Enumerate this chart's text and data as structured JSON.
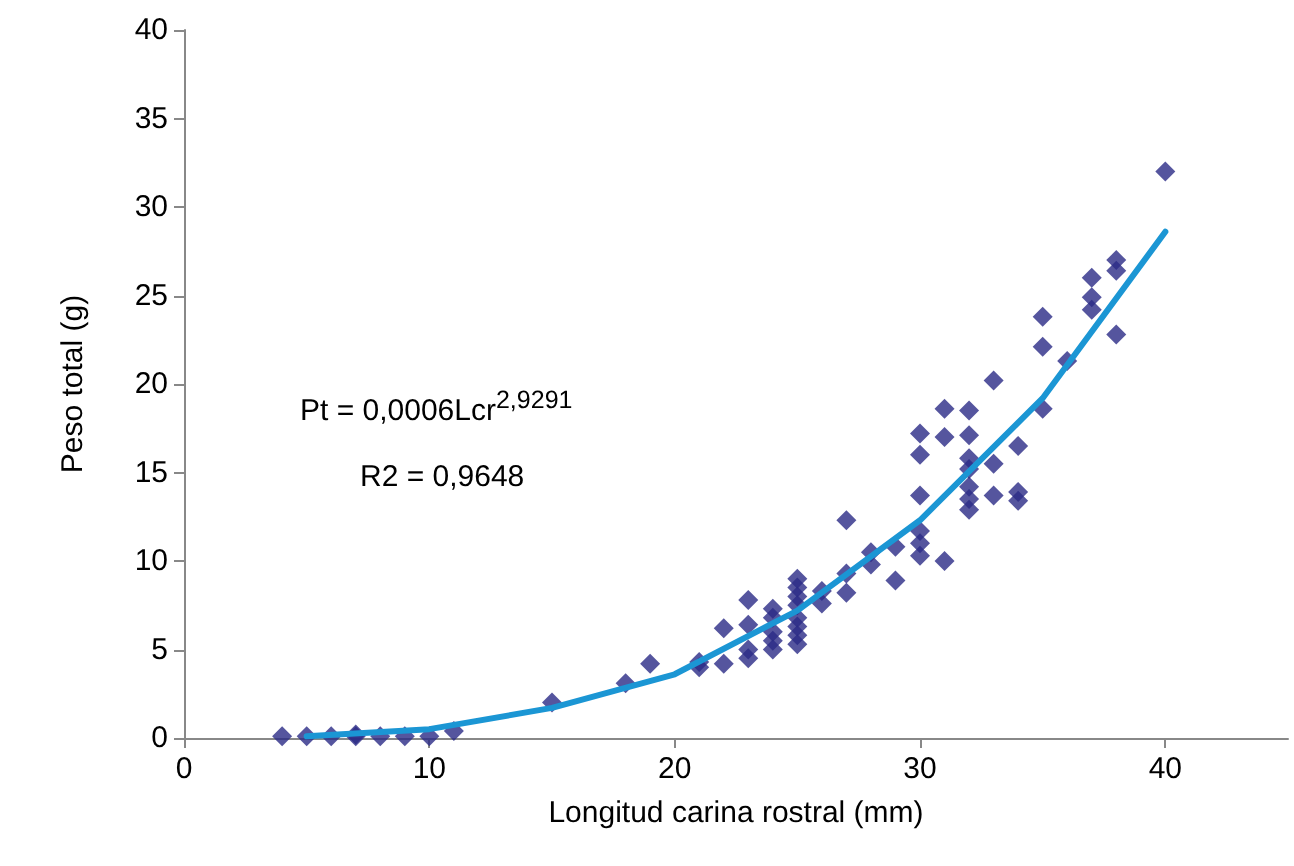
{
  "chart_data": {
    "type": "scatter",
    "xlabel": "Longitud carina rostral (mm)",
    "ylabel": "Peso total (g)",
    "xlim": [
      0,
      45
    ],
    "xticks": [
      0,
      10,
      20,
      30,
      40
    ],
    "ylim": [
      0,
      40
    ],
    "yticks": [
      0,
      5,
      10,
      15,
      20,
      25,
      30,
      35,
      40
    ],
    "grid": false,
    "annotations": [
      "Pt = 0,0006Lcr$^{2,9291}$",
      "R2 = 0,9648"
    ],
    "series": [
      {
        "marker": "diamond",
        "color": "#2b2b86",
        "x": [
          4,
          5,
          6,
          7,
          7,
          8,
          9,
          10,
          11,
          15,
          18,
          19,
          21,
          21,
          22,
          22,
          23,
          23,
          23,
          23,
          24,
          24,
          24,
          24,
          24,
          25,
          25,
          25,
          25,
          25,
          25,
          25,
          25,
          26,
          26,
          27,
          27,
          27,
          28,
          28,
          29,
          29,
          30,
          30,
          30,
          30,
          30,
          30,
          31,
          31,
          31,
          32,
          32,
          32,
          32,
          32,
          32,
          32,
          33,
          33,
          33,
          34,
          34,
          34,
          35,
          35,
          35,
          36,
          37,
          37,
          37,
          38,
          38,
          38,
          40
        ],
        "values": [
          0.1,
          0.1,
          0.1,
          0.2,
          0.1,
          0.1,
          0.1,
          0.1,
          0.4,
          2.0,
          3.1,
          4.2,
          4.0,
          4.3,
          6.2,
          4.2,
          7.8,
          6.4,
          5.0,
          4.5,
          7.3,
          6.8,
          6.0,
          5.5,
          5.0,
          9.0,
          8.5,
          8.0,
          7.5,
          6.8,
          6.3,
          5.8,
          5.3,
          8.3,
          7.6,
          12.3,
          9.3,
          8.2,
          10.5,
          9.8,
          10.8,
          8.9,
          17.2,
          16.0,
          13.7,
          11.7,
          11.0,
          10.3,
          18.6,
          17.0,
          10.0,
          18.5,
          17.1,
          15.8,
          15.2,
          14.2,
          13.5,
          12.9,
          20.2,
          15.5,
          13.7,
          16.5,
          13.9,
          13.4,
          23.8,
          22.1,
          18.6,
          21.3,
          26.0,
          24.9,
          24.2,
          27.0,
          26.4,
          22.8,
          32.0
        ]
      },
      {
        "type": "line",
        "marker": "none",
        "line_style": "solid",
        "color": "#1b96d4",
        "x": [
          5,
          10,
          15,
          20,
          25,
          30,
          35,
          40
        ],
        "values": [
          0.1,
          0.5,
          1.7,
          3.6,
          7.2,
          12.3,
          19.2,
          28.6
        ]
      }
    ]
  }
}
